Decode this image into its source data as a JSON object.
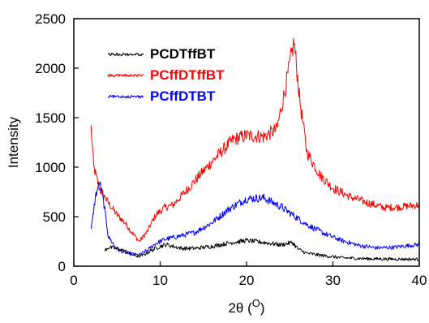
{
  "chart_data": {
    "type": "line",
    "xlabel": "2θ (O)",
    "ylabel": "Intensity",
    "xlim": [
      0,
      40
    ],
    "ylim": [
      0,
      2500
    ],
    "x_ticks": [
      "0",
      "10",
      "20",
      "30",
      "40"
    ],
    "y_ticks": [
      "0",
      "500",
      "1000",
      "1500",
      "2000",
      "2500"
    ],
    "grid": false,
    "legend_position": "top-left",
    "series": [
      {
        "name": "PCDTffBT",
        "color": "#000000",
        "x": [
          3.6,
          4.0,
          5.0,
          6.0,
          7.0,
          7.5,
          8.0,
          9.0,
          10.0,
          10.7,
          11.5,
          12.5,
          14.0,
          16.0,
          18.0,
          20.0,
          22.0,
          24.0,
          25.3,
          26.0,
          27.0,
          29.0,
          31.0,
          34.0,
          37.0,
          40.0
        ],
        "values": [
          160,
          190,
          180,
          150,
          110,
          100,
          110,
          160,
          200,
          220,
          200,
          180,
          180,
          200,
          235,
          260,
          240,
          215,
          240,
          170,
          130,
          105,
          85,
          75,
          72,
          70
        ]
      },
      {
        "name": "PCffDTffBT",
        "color": "#ff0000",
        "x": [
          2.0,
          2.3,
          3.0,
          4.0,
          5.0,
          6.0,
          7.0,
          7.6,
          8.5,
          9.5,
          10.5,
          11.5,
          13.0,
          15.0,
          17.0,
          18.5,
          20.0,
          22.0,
          23.5,
          24.5,
          25.5,
          26.2,
          27.0,
          28.5,
          30.0,
          32.0,
          34.0,
          36.0,
          38.0,
          40.0
        ],
        "values": [
          1400,
          1000,
          780,
          640,
          520,
          430,
          310,
          250,
          350,
          520,
          590,
          620,
          760,
          960,
          1150,
          1280,
          1320,
          1310,
          1380,
          1800,
          2270,
          1650,
          1150,
          920,
          790,
          700,
          640,
          590,
          600,
          620
        ]
      },
      {
        "name": "PCffDTBT",
        "color": "#0000ff",
        "x": [
          2.0,
          2.5,
          3.0,
          3.5,
          4.0,
          5.0,
          6.0,
          7.0,
          7.5,
          8.5,
          9.5,
          10.5,
          12.0,
          14.0,
          16.0,
          18.0,
          20.0,
          22.0,
          24.0,
          25.5,
          27.0,
          29.0,
          31.0,
          33.0,
          35.0,
          37.0,
          40.0
        ],
        "values": [
          360,
          700,
          850,
          620,
          300,
          170,
          135,
          120,
          110,
          160,
          230,
          270,
          300,
          340,
          440,
          580,
          680,
          690,
          600,
          510,
          420,
          330,
          260,
          210,
          185,
          190,
          220
        ]
      }
    ]
  }
}
